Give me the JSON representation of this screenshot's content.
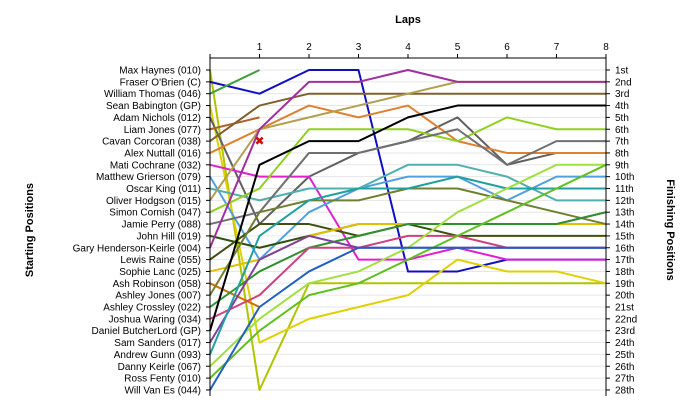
{
  "chart_data": {
    "type": "line",
    "title": "Laps",
    "ylabel_left": "Starting Positions",
    "ylabel_right": "Finishing Positions",
    "laps": [
      1,
      2,
      3,
      4,
      5,
      6,
      7,
      8
    ],
    "start_order": [
      "Max Haynes (010)",
      "Fraser O'Brien (C)",
      "William Thomas (046)",
      "Sean Babington (GP)",
      "Adam Nichols (012)",
      "Liam Jones (077)",
      "Cavan Corcoran (038)",
      "Alex Nuttall (016)",
      "Mati Cochrane (032)",
      "Matthew Grierson (079)",
      "Oscar King (011)",
      "Oliver Hodgson (015)",
      "Simon Cornish (047)",
      "Jamie Perry (088)",
      "John Hill (019)",
      "Gary Henderson-Keirle (004)",
      "Lewis Raine (055)",
      "Sophie Lanc (025)",
      "Ash Robinson (058)",
      "Ashley Jones (007)",
      "Ashley Crossley (022)",
      "Joshua Waring (034)",
      "Daniel ButcherLord (GP)",
      "Sam Sanders (017)",
      "Andrew Gunn (093)",
      "Danny Keirle (067)",
      "Ross Fenty (010)",
      "Will Van Es (044)"
    ],
    "finish_labels": [
      "1st",
      "2nd",
      "3rd",
      "4th",
      "5th",
      "6th",
      "7th",
      "8th",
      "9th",
      "10th",
      "11th",
      "12th",
      "13th",
      "14th",
      "15th",
      "16th",
      "17th",
      "18th",
      "19th",
      "20th",
      "21st",
      "22nd",
      "23rd",
      "24th",
      "25th",
      "26th",
      "27th",
      "28th"
    ],
    "series": [
      {
        "color": "#b0c400",
        "positions": [
          1,
          28,
          19,
          19,
          19,
          19,
          19,
          19,
          19
        ]
      },
      {
        "color": "#1010c0",
        "positions": [
          2,
          3,
          1,
          1,
          18,
          18,
          17,
          17,
          17
        ]
      },
      {
        "color": "#40a040",
        "positions": [
          3,
          1
        ]
      },
      {
        "color": "#e0d000",
        "positions": [
          4,
          24,
          22,
          21,
          20,
          17,
          18,
          18,
          19
        ]
      },
      {
        "color": "#606060",
        "positions": [
          5,
          14,
          10,
          8,
          7,
          5,
          9,
          8,
          8
        ]
      },
      {
        "color": "#b06020",
        "positions": [
          6,
          5
        ]
      },
      {
        "color": "#806030",
        "positions": [
          7,
          4,
          3,
          3,
          3,
          3,
          3,
          3,
          3
        ]
      },
      {
        "color": "#e08030",
        "positions": [
          8,
          6,
          4,
          5,
          4,
          7,
          8,
          8,
          8
        ]
      },
      {
        "color": "#e020d0",
        "positions": [
          9,
          10,
          10,
          17,
          17,
          16,
          17,
          17,
          17
        ]
      },
      {
        "color": "#50a0e0",
        "positions": [
          10,
          17,
          13,
          11,
          10,
          10,
          12,
          10,
          10
        ]
      },
      {
        "color": "#50b0b0",
        "positions": [
          11,
          12,
          11,
          11,
          9,
          9,
          10,
          12,
          12
        ]
      },
      {
        "color": "#b0a050",
        "positions": [
          12,
          6,
          5,
          4,
          3,
          2,
          2,
          2,
          2
        ]
      },
      {
        "color": "#90d020",
        "positions": [
          13,
          11,
          6,
          6,
          6,
          7,
          5,
          6,
          6
        ]
      },
      {
        "color": "#707070",
        "positions": [
          14,
          13,
          8,
          8,
          7,
          6,
          9,
          7,
          7
        ]
      },
      {
        "color": "#305010",
        "positions": [
          15,
          16,
          15,
          14,
          14,
          14,
          14,
          14,
          13
        ]
      },
      {
        "color": "#a030a0",
        "positions": [
          16,
          6,
          2,
          2,
          1,
          2,
          2,
          2,
          2
        ]
      },
      {
        "color": "#405010",
        "positions": [
          17,
          14,
          14,
          15,
          14,
          15,
          15,
          15,
          15
        ]
      },
      {
        "color": "#e0c000",
        "positions": [
          18,
          17,
          15,
          14,
          14,
          14,
          14,
          14,
          14
        ]
      },
      {
        "color": "#d07000",
        "positions": [
          19,
          21
        ]
      },
      {
        "color": "#708030",
        "positions": [
          20,
          13,
          12,
          12,
          11,
          11,
          12,
          13,
          14
        ]
      },
      {
        "color": "#309030",
        "positions": [
          21,
          18,
          16,
          15,
          14,
          14,
          14,
          14,
          13
        ]
      },
      {
        "color": "#d04080",
        "positions": [
          22,
          20,
          16,
          16,
          15,
          15,
          16,
          16,
          16
        ]
      },
      {
        "color": "#000000",
        "positions": [
          23,
          9,
          7,
          7,
          5,
          4,
          4,
          4,
          4
        ]
      },
      {
        "color": "#8040a0",
        "positions": [
          24,
          17,
          15,
          16,
          16,
          16,
          16,
          16,
          16
        ]
      },
      {
        "color": "#20a0a0",
        "positions": [
          25,
          15,
          12,
          11,
          11,
          10,
          11,
          11,
          11
        ]
      },
      {
        "color": "#a0e040",
        "positions": [
          26,
          22,
          19,
          18,
          16,
          13,
          11,
          9,
          9
        ]
      },
      {
        "color": "#60c020",
        "positions": [
          27,
          23,
          20,
          19,
          17,
          15,
          13,
          11,
          9
        ]
      },
      {
        "color": "#2060c0",
        "positions": [
          28,
          21,
          18,
          16,
          16,
          16,
          16,
          16,
          16
        ]
      }
    ],
    "marker": {
      "lap": 1,
      "position": 7,
      "color": "#cc1010",
      "symbol": "✖"
    },
    "grid": true
  }
}
